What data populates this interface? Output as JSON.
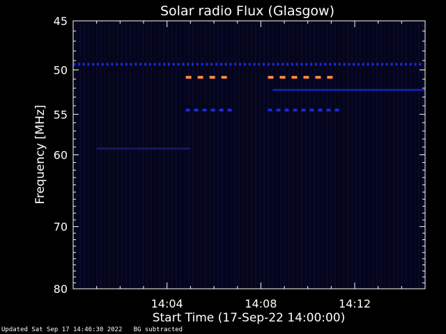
{
  "chart_data": {
    "type": "heatmap",
    "title": "Solar radio Flux (Glasgow)",
    "xlabel": "Start Time (17-Sep-22 14:00:00)",
    "ylabel": "Frequency [MHz]",
    "xlim_min": [
      0.0,
      15.0
    ],
    "ylim_mhz": [
      45,
      80
    ],
    "y_ticks": [
      "45",
      "50",
      "55",
      "60",
      "70",
      "80"
    ],
    "y_tick_values": [
      45,
      50,
      55,
      60,
      70,
      80
    ],
    "x_ticks": [
      "14:04",
      "14:08",
      "14:12"
    ],
    "x_tick_values": [
      4,
      8,
      12
    ],
    "colors": {
      "background": "#000000",
      "plot_bg": "#05051a",
      "stripe": "#0b0b3a",
      "blue_band": "#1a2ad8",
      "orange_band": "#ff8844"
    },
    "features": [
      {
        "name": "persistent band",
        "freq_mhz": 49.4,
        "t_start": 0.0,
        "t_end": 15.0,
        "color": "blue",
        "dashed": true
      },
      {
        "name": "burst upper",
        "freq_mhz": 50.8,
        "t_start": 4.8,
        "t_end": 6.9,
        "color": "orange",
        "dashed": true
      },
      {
        "name": "burst upper 2",
        "freq_mhz": 50.8,
        "t_start": 8.3,
        "t_end": 11.5,
        "color": "orange",
        "dashed": true
      },
      {
        "name": "burst lower",
        "freq_mhz": 54.5,
        "t_start": 4.8,
        "t_end": 6.9,
        "color": "blue",
        "dashed": true
      },
      {
        "name": "burst lower 2",
        "freq_mhz": 54.5,
        "t_start": 8.3,
        "t_end": 11.5,
        "color": "blue",
        "dashed": true
      },
      {
        "name": "band 52",
        "freq_mhz": 52.2,
        "t_start": 8.5,
        "t_end": 15.0,
        "color": "blue",
        "dashed": false
      },
      {
        "name": "band 59",
        "freq_mhz": 59.2,
        "t_start": 1.0,
        "t_end": 5.0,
        "color": "dim",
        "dashed": false
      }
    ]
  },
  "footer": {
    "updated": "Updated Sat Sep 17 14:46:30 2022",
    "mode": "BG subtracted"
  }
}
